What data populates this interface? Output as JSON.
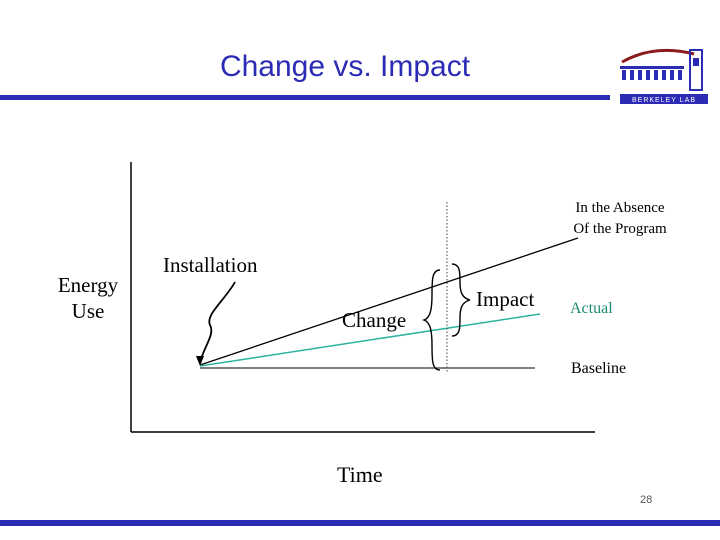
{
  "slide": {
    "title": "Change vs. Impact",
    "page_number": "28",
    "logo_text": "BERKELEY LAB"
  },
  "diagram": {
    "y_axis_label_line1": "Energy",
    "y_axis_label_line2": "Use",
    "x_axis_label": "Time",
    "installation_label": "Installation",
    "change_label": "Change",
    "impact_label": "Impact",
    "absence_label_line1": "In the Absence",
    "absence_label_line2": "Of the Program",
    "actual_label": "Actual",
    "baseline_label": "Baseline"
  },
  "colors": {
    "title": "#2b2bb5",
    "actual_line": "#2bb5a0",
    "actual_text": "#1a8a72"
  }
}
